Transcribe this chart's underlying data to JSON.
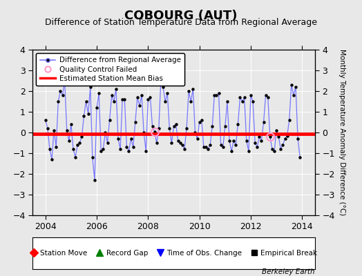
{
  "title": "COBOURG (AUT)",
  "subtitle": "Difference of Station Temperature Data from Regional Average",
  "ylabel_right": "Monthly Temperature Anomaly Difference (°C)",
  "xlim": [
    2003.5,
    2014.5
  ],
  "ylim": [
    -4,
    4
  ],
  "yticks": [
    -4,
    -3,
    -2,
    -1,
    0,
    1,
    2,
    3,
    4
  ],
  "xticks": [
    2004,
    2006,
    2008,
    2010,
    2012,
    2014
  ],
  "bias_value": -0.05,
  "fig_bg_color": "#e8e8e8",
  "plot_bg_color": "#e8e8e8",
  "line_color": "#7777ff",
  "marker_color": "#000000",
  "bias_color": "#ff0000",
  "title_fontsize": 13,
  "subtitle_fontsize": 9,
  "watermark": "Berkeley Earth",
  "qc_points_x": [
    2008.25,
    2012.75
  ],
  "qc_points_y": [
    0.05,
    -0.2
  ],
  "monthly_data": [
    2004.0,
    0.6,
    2004.083,
    0.2,
    2004.167,
    -0.8,
    2004.25,
    -1.3,
    2004.333,
    0.1,
    2004.417,
    -0.7,
    2004.5,
    1.5,
    2004.583,
    2.0,
    2004.667,
    1.8,
    2004.75,
    2.5,
    2004.833,
    0.1,
    2004.917,
    -0.4,
    2005.0,
    0.4,
    2005.083,
    -0.8,
    2005.167,
    -1.2,
    2005.25,
    -0.6,
    2005.333,
    -0.5,
    2005.417,
    -0.2,
    2005.5,
    0.8,
    2005.583,
    1.5,
    2005.667,
    0.9,
    2005.75,
    2.2,
    2005.833,
    -1.2,
    2005.917,
    -2.3,
    2006.0,
    1.2,
    2006.083,
    1.9,
    2006.167,
    -0.9,
    2006.25,
    -0.8,
    2006.333,
    0.0,
    2006.417,
    -0.5,
    2006.5,
    0.6,
    2006.583,
    1.8,
    2006.667,
    1.5,
    2006.75,
    2.1,
    2006.833,
    -0.3,
    2006.917,
    -0.8,
    2007.0,
    1.6,
    2007.083,
    1.6,
    2007.167,
    -0.7,
    2007.25,
    -0.9,
    2007.333,
    -0.3,
    2007.417,
    -0.7,
    2007.5,
    0.5,
    2007.583,
    1.7,
    2007.667,
    1.3,
    2007.75,
    1.8,
    2007.833,
    0.0,
    2007.917,
    -0.9,
    2008.0,
    1.6,
    2008.083,
    1.7,
    2008.167,
    0.3,
    2008.25,
    0.05,
    2008.333,
    -0.5,
    2008.417,
    0.2,
    2008.5,
    2.6,
    2008.583,
    2.2,
    2008.667,
    1.5,
    2008.75,
    1.9,
    2008.833,
    0.2,
    2008.917,
    -0.5,
    2009.0,
    0.3,
    2009.083,
    0.4,
    2009.167,
    -0.4,
    2009.25,
    -0.5,
    2009.333,
    -0.6,
    2009.417,
    -0.8,
    2009.5,
    0.2,
    2009.583,
    2.0,
    2009.667,
    1.5,
    2009.75,
    2.1,
    2009.833,
    0.0,
    2009.917,
    -0.3,
    2010.0,
    0.5,
    2010.083,
    0.6,
    2010.167,
    -0.7,
    2010.25,
    -0.7,
    2010.333,
    -0.8,
    2010.417,
    -0.6,
    2010.5,
    0.3,
    2010.583,
    1.8,
    2010.667,
    1.8,
    2010.75,
    1.9,
    2010.833,
    -0.6,
    2010.917,
    -0.7,
    2011.0,
    0.3,
    2011.083,
    1.5,
    2011.167,
    -0.4,
    2011.25,
    -0.9,
    2011.333,
    -0.4,
    2011.417,
    -0.6,
    2011.5,
    0.4,
    2011.583,
    1.7,
    2011.667,
    1.5,
    2011.75,
    1.7,
    2011.833,
    -0.4,
    2011.917,
    -0.9,
    2012.0,
    1.8,
    2012.083,
    1.5,
    2012.167,
    -0.5,
    2012.25,
    -0.7,
    2012.333,
    -0.2,
    2012.417,
    -0.4,
    2012.5,
    0.5,
    2012.583,
    1.8,
    2012.667,
    1.7,
    2012.75,
    -0.2,
    2012.833,
    -0.8,
    2012.917,
    -0.9,
    2013.0,
    0.1,
    2013.083,
    -0.2,
    2013.167,
    -0.8,
    2013.25,
    -0.6,
    2013.333,
    -0.3,
    2013.417,
    -0.15,
    2013.5,
    0.6,
    2013.583,
    2.3,
    2013.667,
    1.8,
    2013.75,
    2.2,
    2013.833,
    -0.3,
    2013.917,
    -1.2
  ]
}
